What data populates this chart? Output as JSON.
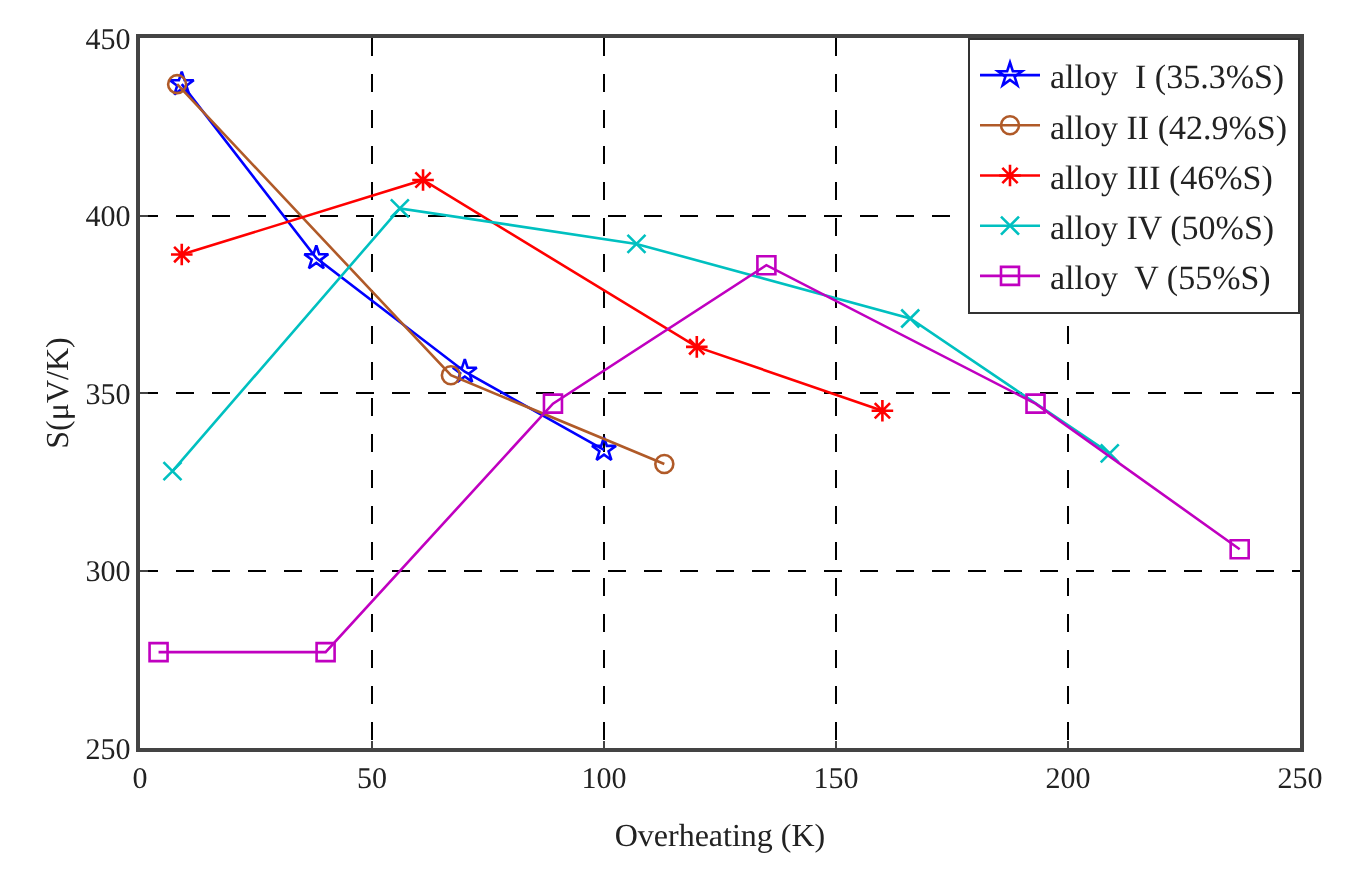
{
  "chart_data": {
    "type": "line",
    "xlabel": "Overheating (K)",
    "ylabel": "S(μV/K)",
    "xlim": [
      0,
      250
    ],
    "xticks": [
      0,
      50,
      100,
      150,
      200,
      250
    ],
    "ylim": [
      250,
      450
    ],
    "yticks": [
      250,
      300,
      350,
      400,
      450
    ],
    "grid": true,
    "legend": "top right",
    "line_style": "solid",
    "series": [
      {
        "name": "alloy  I (35.3%S)",
        "color": "#0000ff",
        "marker": "star",
        "x": [
          9,
          38,
          70,
          100
        ],
        "values": [
          437,
          388,
          356,
          334
        ]
      },
      {
        "name": "alloy II (42.9%S)",
        "color": "#b05a28",
        "marker": "circle",
        "x": [
          8,
          67,
          113
        ],
        "values": [
          437,
          355,
          330
        ]
      },
      {
        "name": "alloy III (46%S)",
        "color": "#ff0000",
        "marker": "cross",
        "x": [
          9,
          61,
          120,
          160
        ],
        "values": [
          389,
          410,
          363,
          345
        ]
      },
      {
        "name": "alloy IV (50%S)",
        "color": "#00c0c0",
        "marker": "x",
        "x": [
          7,
          56,
          107,
          166,
          209
        ],
        "values": [
          328,
          402,
          392,
          371,
          333
        ]
      },
      {
        "name": "alloy  V (55%S)",
        "color": "#c000c0",
        "marker": "square",
        "x": [
          4,
          40,
          89,
          135,
          193,
          237
        ],
        "values": [
          277,
          277,
          347,
          386,
          347,
          306
        ]
      }
    ]
  }
}
